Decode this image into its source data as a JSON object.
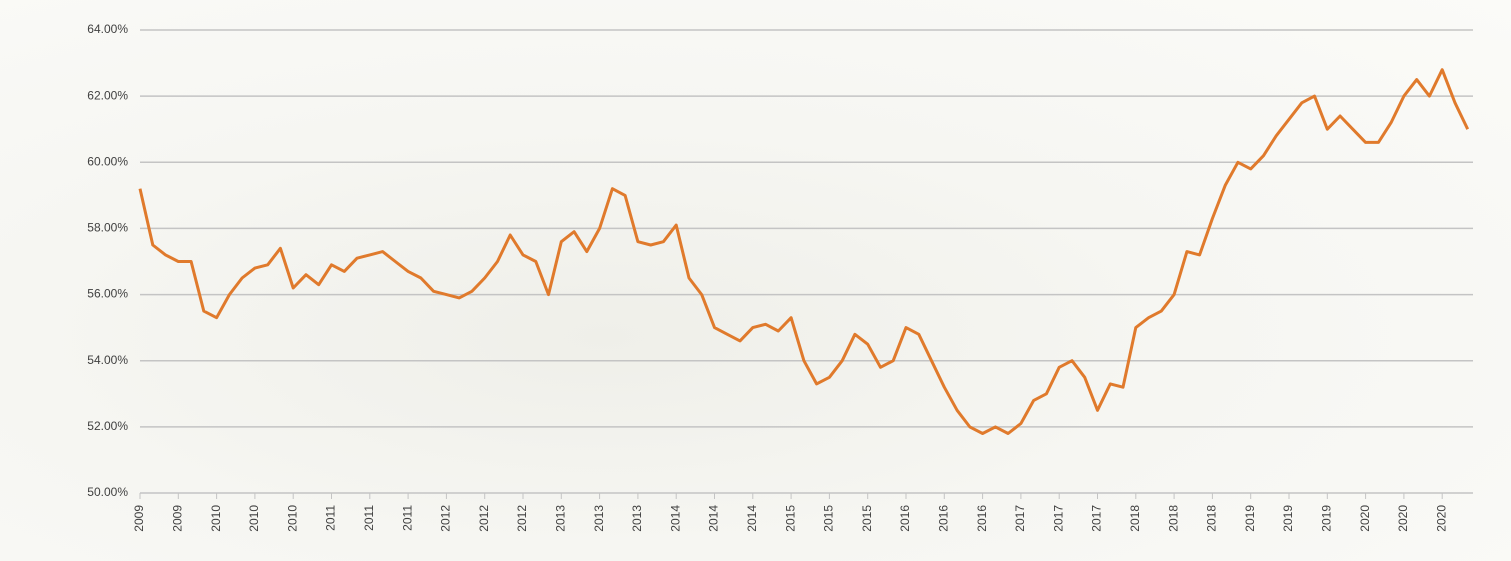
{
  "chart_data": {
    "type": "line",
    "categories": [
      "2009",
      null,
      null,
      "2009",
      null,
      null,
      "2010",
      null,
      null,
      "2010",
      null,
      null,
      "2010",
      null,
      null,
      "2011",
      null,
      null,
      "2011",
      null,
      null,
      "2011",
      null,
      null,
      "2012",
      null,
      null,
      "2012",
      null,
      null,
      "2012",
      null,
      null,
      "2013",
      null,
      null,
      "2013",
      null,
      null,
      "2013",
      null,
      null,
      "2014",
      null,
      null,
      "2014",
      null,
      null,
      "2014",
      null,
      null,
      "2015",
      null,
      null,
      "2015",
      null,
      null,
      "2015",
      null,
      null,
      "2016",
      null,
      null,
      "2016",
      null,
      null,
      "2016",
      null,
      null,
      "2017",
      null,
      null,
      "2017",
      null,
      null,
      "2017",
      null,
      null,
      "2018",
      null,
      null,
      "2018",
      null,
      null,
      "2018",
      null,
      null,
      "2019",
      null,
      null,
      "2019",
      null,
      null,
      "2019",
      null,
      null,
      "2020",
      null,
      null,
      "2020",
      null,
      null,
      "2020",
      null,
      null
    ],
    "series": [
      {
        "color": "#e07a2c",
        "values": [
          59.2,
          57.5,
          57.2,
          57.0,
          57.0,
          55.5,
          55.3,
          56.0,
          56.5,
          56.8,
          56.9,
          57.4,
          56.2,
          56.6,
          56.3,
          56.9,
          56.7,
          57.1,
          57.2,
          57.3,
          57.0,
          56.7,
          56.5,
          56.1,
          56.0,
          55.9,
          56.1,
          56.5,
          57.0,
          57.8,
          57.2,
          57.0,
          56.0,
          57.6,
          57.9,
          57.3,
          58.0,
          59.2,
          59.0,
          57.6,
          57.5,
          57.6,
          58.1,
          56.5,
          56.0,
          55.0,
          54.8,
          54.6,
          55.0,
          55.1,
          54.9,
          55.3,
          54.0,
          53.3,
          53.5,
          54.0,
          54.8,
          54.5,
          53.8,
          54.0,
          55.0,
          54.8,
          54.0,
          53.2,
          52.5,
          52.0,
          51.8,
          52.0,
          51.8,
          52.1,
          52.8,
          53.0,
          53.8,
          54.0,
          53.5,
          52.5,
          53.3,
          53.2,
          55.0,
          55.3,
          55.5,
          56.0,
          57.3,
          57.2,
          58.3,
          59.3,
          60.0,
          59.8,
          60.2,
          60.8,
          61.3,
          61.8,
          62.0,
          61.0,
          61.4,
          61.0,
          60.6,
          60.6,
          61.2,
          62.0,
          62.5,
          62.0,
          62.8,
          61.8,
          61.0
        ]
      }
    ],
    "ylim": [
      50,
      64
    ],
    "yticks": [
      {
        "value": 50,
        "label": "50.00%"
      },
      {
        "value": 52,
        "label": "52.00%"
      },
      {
        "value": 54,
        "label": "54.00%"
      },
      {
        "value": 56,
        "label": "56.00%"
      },
      {
        "value": 58,
        "label": "58.00%"
      },
      {
        "value": 60,
        "label": "60.00%"
      },
      {
        "value": 62,
        "label": "62.00%"
      },
      {
        "value": 64,
        "label": "64.00%"
      }
    ],
    "grid": true
  }
}
